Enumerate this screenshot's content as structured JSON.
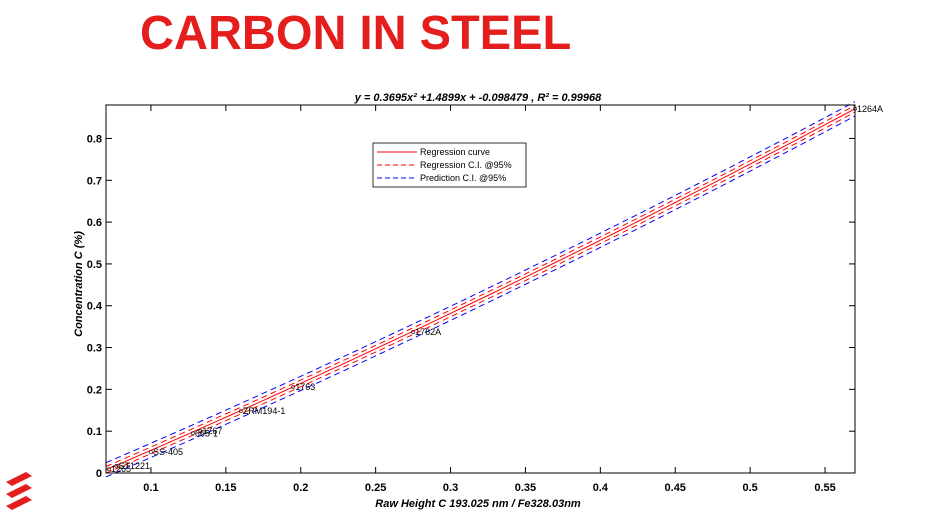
{
  "page": {
    "title": "CARBON IN STEEL",
    "logo": "brand-logo",
    "accent_color": "#e41d1d"
  },
  "chart_data": {
    "type": "line",
    "title": "y = 0.3695x² +1.4899x + -0.098479 , R² = 0.99968",
    "xlabel": "Raw Height C 193.025 nm / Fe328.03nm",
    "ylabel": "Concentration C (%)",
    "xlim": [
      0.07,
      0.57
    ],
    "ylim": [
      0,
      0.88
    ],
    "xticks": [
      0.1,
      0.15,
      0.2,
      0.25,
      0.3,
      0.35,
      0.4,
      0.45,
      0.5,
      0.55
    ],
    "xtick_labels": [
      "0.1",
      "0.15",
      "0.2",
      "0.25",
      "0.3",
      "0.35",
      "0.4",
      "0.45",
      "0.5",
      "0.55"
    ],
    "yticks": [
      0,
      0.1,
      0.2,
      0.3,
      0.4,
      0.5,
      0.6,
      0.7,
      0.8
    ],
    "ytick_labels": [
      "0",
      "0.1",
      "0.2",
      "0.3",
      "0.4",
      "0.5",
      "0.6",
      "0.7",
      "0.8"
    ],
    "grid": false,
    "legend_position": "top-center",
    "regression": {
      "a": 0.3695,
      "b": 1.4899,
      "c": -0.098479,
      "r2": 0.99968
    },
    "series": [
      {
        "name": "Regression curve",
        "color": "#ff0000",
        "style": "solid",
        "offset": 0
      },
      {
        "name": "Regression C.I. @95%",
        "color": "#ff0000",
        "style": "dashed",
        "offset": 0.008
      },
      {
        "name": "Prediction C.I. @95%",
        "color": "#0000ff",
        "style": "dashed",
        "offset": 0.017
      }
    ],
    "points": [
      {
        "label": "1264A",
        "x": 0.57,
        "y": 0.871
      },
      {
        "label": "1762A",
        "x": 0.275,
        "y": 0.337
      },
      {
        "label": "1763",
        "x": 0.195,
        "y": 0.206
      },
      {
        "label": "ZRM194-1",
        "x": 0.16,
        "y": 0.148
      },
      {
        "label": "1767",
        "x": 0.133,
        "y": 0.1
      },
      {
        "label": "665-1",
        "x": 0.128,
        "y": 0.095
      },
      {
        "label": "SS-405",
        "x": 0.1,
        "y": 0.05
      },
      {
        "label": "ST1221",
        "x": 0.077,
        "y": 0.017
      },
      {
        "label": "1265",
        "x": 0.072,
        "y": 0.009
      }
    ]
  }
}
